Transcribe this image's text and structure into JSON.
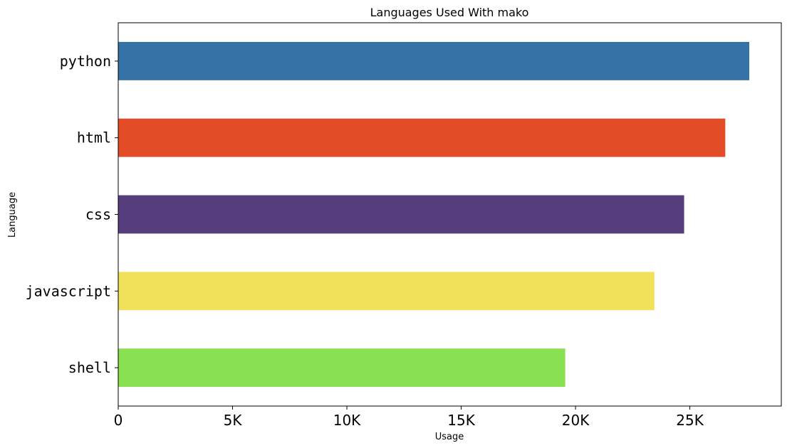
{
  "chart_data": {
    "type": "bar",
    "orientation": "horizontal",
    "title": "Languages Used With mako",
    "xlabel": "Usage",
    "ylabel": "Language",
    "categories": [
      "python",
      "html",
      "css",
      "javascript",
      "shell"
    ],
    "values": [
      27600,
      26550,
      24750,
      23450,
      19550
    ],
    "colors": [
      "#3572A5",
      "#E34C26",
      "#563D7C",
      "#F1E05A",
      "#89E051"
    ],
    "xlim": [
      0,
      29000
    ],
    "xticks": [
      0,
      5000,
      10000,
      15000,
      20000,
      25000
    ],
    "xtick_labels": [
      "0",
      "5K",
      "10K",
      "15K",
      "20K",
      "25K"
    ],
    "grid": false,
    "legend": "none"
  }
}
